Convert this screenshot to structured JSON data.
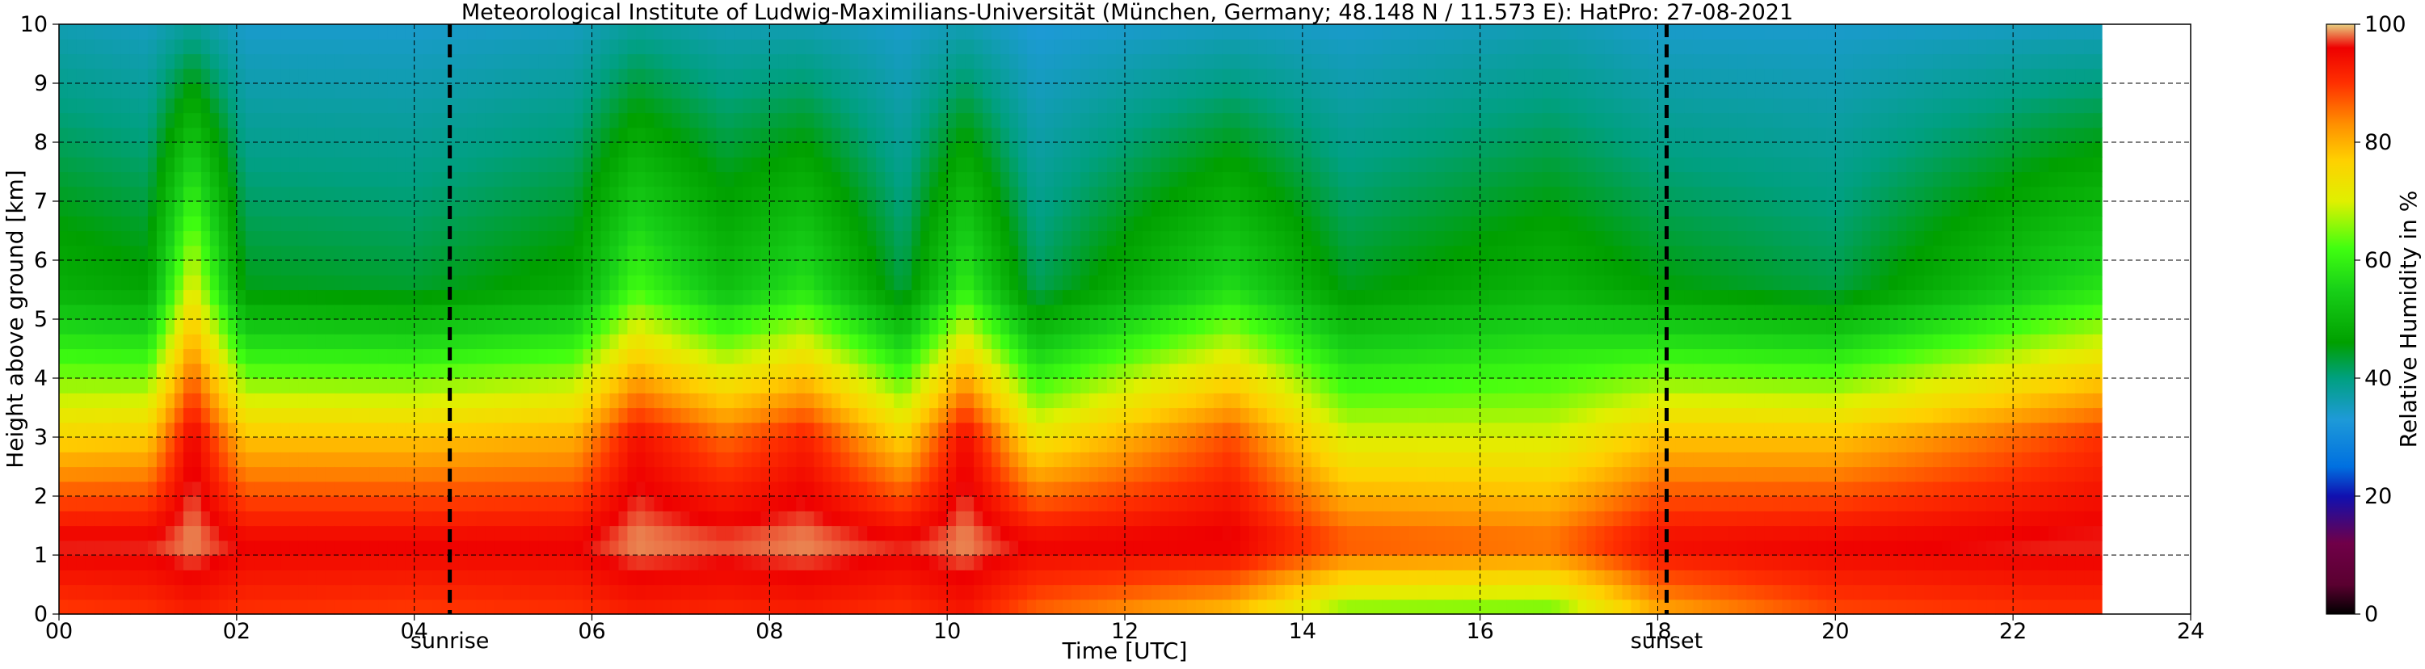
{
  "chart_data": {
    "type": "heatmap",
    "title": "Meteorological Institute of Ludwig-Maximilians-Universität (München, Germany; 48.148 N / 11.573 E):    HatPro: 27-08-2021",
    "xlabel": "Time [UTC]",
    "ylabel": "Height above ground [km]",
    "xlim": [
      0,
      24
    ],
    "ylim": [
      0,
      10
    ],
    "x_tick_labels": [
      "00",
      "02",
      "04",
      "06",
      "08",
      "10",
      "12",
      "14",
      "16",
      "18",
      "20",
      "22",
      "24"
    ],
    "y_tick_labels": [
      "0",
      "1",
      "2",
      "3",
      "4",
      "5",
      "6",
      "7",
      "8",
      "9",
      "10"
    ],
    "grid": true,
    "data_end_hour": 23.0,
    "z_label": "Relative Humidity in %",
    "z_range": [
      0,
      100
    ],
    "colorbar_ticks": [
      "0",
      "20",
      "40",
      "60",
      "80",
      "100"
    ],
    "colorbar_stops": [
      {
        "value": 0,
        "color": "#000000"
      },
      {
        "value": 5,
        "color": "#5a0030"
      },
      {
        "value": 12,
        "color": "#700048"
      },
      {
        "value": 20,
        "color": "#1010b0"
      },
      {
        "value": 25,
        "color": "#0070e0"
      },
      {
        "value": 33,
        "color": "#1e9ad8"
      },
      {
        "value": 40,
        "color": "#00a080"
      },
      {
        "value": 46,
        "color": "#00a000"
      },
      {
        "value": 55,
        "color": "#18d018"
      },
      {
        "value": 62,
        "color": "#40ff10"
      },
      {
        "value": 70,
        "color": "#e0f000"
      },
      {
        "value": 77,
        "color": "#ffd000"
      },
      {
        "value": 83,
        "color": "#ff9000"
      },
      {
        "value": 90,
        "color": "#ff3000"
      },
      {
        "value": 96,
        "color": "#ee0000"
      },
      {
        "value": 100,
        "color": "#e8d080"
      }
    ],
    "events": [
      {
        "label": "sunrise",
        "time": 4.4
      },
      {
        "label": "sunset",
        "time": 18.1
      }
    ],
    "approx_profiles": [
      {
        "t": 0.0,
        "surface": 89,
        "low": 97,
        "mid": 76,
        "upper": 49,
        "top": 36
      },
      {
        "t": 1.0,
        "surface": 90,
        "low": 97,
        "mid": 77,
        "upper": 47,
        "top": 35
      },
      {
        "t": 1.5,
        "surface": 92,
        "low": 99,
        "mid": 96,
        "upper": 72,
        "top": 38
      },
      {
        "t": 2.1,
        "surface": 90,
        "low": 96,
        "mid": 78,
        "upper": 45,
        "top": 34
      },
      {
        "t": 4.0,
        "surface": 89,
        "low": 96,
        "mid": 78,
        "upper": 44,
        "top": 34
      },
      {
        "t": 5.8,
        "surface": 90,
        "low": 96,
        "mid": 80,
        "upper": 48,
        "top": 35
      },
      {
        "t": 6.5,
        "surface": 92,
        "low": 99,
        "mid": 94,
        "upper": 62,
        "top": 38
      },
      {
        "t": 7.5,
        "surface": 91,
        "low": 98,
        "mid": 86,
        "upper": 52,
        "top": 36
      },
      {
        "t": 8.4,
        "surface": 92,
        "low": 99,
        "mid": 92,
        "upper": 58,
        "top": 36
      },
      {
        "t": 9.5,
        "surface": 90,
        "low": 97,
        "mid": 76,
        "upper": 43,
        "top": 34
      },
      {
        "t": 10.2,
        "surface": 93,
        "low": 99,
        "mid": 95,
        "upper": 60,
        "top": 36
      },
      {
        "t": 11.0,
        "surface": 86,
        "low": 96,
        "mid": 73,
        "upper": 42,
        "top": 33
      },
      {
        "t": 13.2,
        "surface": 78,
        "low": 97,
        "mid": 88,
        "upper": 57,
        "top": 35
      },
      {
        "t": 14.5,
        "surface": 64,
        "low": 88,
        "mid": 70,
        "upper": 45,
        "top": 34
      },
      {
        "t": 16.8,
        "surface": 63,
        "low": 86,
        "mid": 70,
        "upper": 50,
        "top": 36
      },
      {
        "t": 18.0,
        "surface": 80,
        "low": 95,
        "mid": 78,
        "upper": 46,
        "top": 34
      },
      {
        "t": 20.0,
        "surface": 88,
        "low": 96,
        "mid": 78,
        "upper": 43,
        "top": 34
      },
      {
        "t": 22.5,
        "surface": 90,
        "low": 97,
        "mid": 88,
        "upper": 56,
        "top": 35
      },
      {
        "t": 23.0,
        "surface": 90,
        "low": 97,
        "mid": 90,
        "upper": 58,
        "top": 35
      }
    ]
  }
}
